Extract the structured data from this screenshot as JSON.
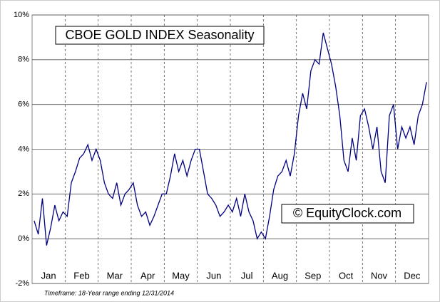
{
  "chart_data": {
    "type": "line",
    "title": "CBOE GOLD INDEX Seasonality",
    "annotation": "© EquityClock.com",
    "footnote": "Timeframe: 18-Year range ending 12/31/2014",
    "categories": [
      null,
      null,
      null,
      null,
      "Jan",
      null,
      null,
      null,
      null,
      null,
      null,
      null,
      "Feb",
      null,
      null,
      null,
      null,
      null,
      null,
      null,
      "Mar",
      null,
      null,
      null,
      null,
      null,
      null,
      null,
      "Apr",
      null,
      null,
      null,
      null,
      null,
      null,
      null,
      "May",
      null,
      null,
      null,
      null,
      null,
      null,
      null,
      "Jun",
      null,
      null,
      null,
      null,
      null,
      null,
      null,
      "Jul",
      null,
      null,
      null,
      null,
      null,
      null,
      null,
      "Aug",
      null,
      null,
      null,
      null,
      null,
      null,
      null,
      "Sep",
      null,
      null,
      null,
      null,
      null,
      null,
      null,
      "Oct",
      null,
      null,
      null,
      null,
      null,
      null,
      null,
      "Nov",
      null,
      null,
      null,
      null,
      null,
      null,
      null,
      "Dec",
      null,
      null,
      null
    ],
    "series": [
      {
        "color": "#000080",
        "values": [
          0.8,
          0.2,
          1.8,
          -0.3,
          0.5,
          1.5,
          0.8,
          1.2,
          1.0,
          2.5,
          3.0,
          3.6,
          3.8,
          4.2,
          3.5,
          4.0,
          3.5,
          2.5,
          2.0,
          1.8,
          2.5,
          1.5,
          2.0,
          2.2,
          2.5,
          1.5,
          1.0,
          1.2,
          0.6,
          1.0,
          1.5,
          2.0,
          2.0,
          2.8,
          3.8,
          3.0,
          3.5,
          2.8,
          3.5,
          4.0,
          4.0,
          3.0,
          2.0,
          1.8,
          1.5,
          1.0,
          1.2,
          1.5,
          1.2,
          1.8,
          1.0,
          2.0,
          1.2,
          0.8,
          0.0,
          0.3,
          0.0,
          1.0,
          2.2,
          2.8,
          3.0,
          3.5,
          2.8,
          3.8,
          5.5,
          6.5,
          5.8,
          7.5,
          8.0,
          7.8,
          9.2,
          8.5,
          7.8,
          6.8,
          5.5,
          3.5,
          3.0,
          4.5,
          3.5,
          5.5,
          5.8,
          5.0,
          4.0,
          5.0,
          3.0,
          2.5,
          5.5,
          6.0,
          4.0,
          5.0,
          4.5,
          5.0,
          4.2,
          5.5,
          6.0,
          7.0
        ]
      }
    ],
    "ylim": [
      -2,
      10
    ],
    "yticks": [
      {
        "value": -2,
        "label": "-2%"
      },
      {
        "value": 0,
        "label": "0%"
      },
      {
        "value": 2,
        "label": "2%"
      },
      {
        "value": 4,
        "label": "4%"
      },
      {
        "value": 6,
        "label": "6%"
      },
      {
        "value": 8,
        "label": "8%"
      },
      {
        "value": 10,
        "label": "10%"
      }
    ],
    "grid": true
  }
}
